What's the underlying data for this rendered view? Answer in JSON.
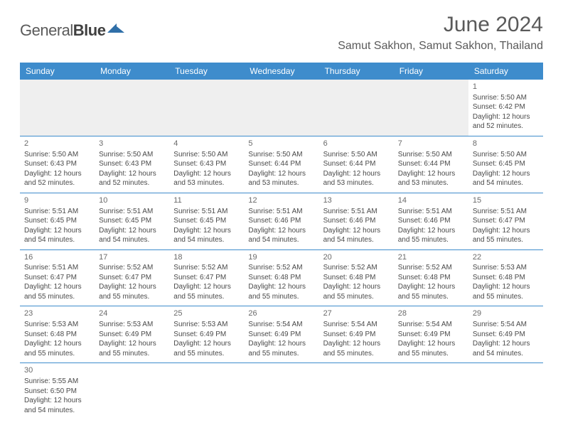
{
  "header": {
    "logo_general": "General",
    "logo_blue": "Blue",
    "month_title": "June 2024",
    "location": "Samut Sakhon, Samut Sakhon, Thailand"
  },
  "styling": {
    "header_bg": "#3e8ccc",
    "header_fg": "#ffffff",
    "border_color": "#3e8ccc",
    "blank_bg": "#efefef",
    "text_color": "#4a4a4a",
    "logo_shape_color": "#2f6fa8",
    "daynum_fontsize": 11,
    "cell_fontsize": 10,
    "th_fontsize": 12,
    "title_fontsize": 30,
    "location_fontsize": 16
  },
  "calendar": {
    "columns": [
      "Sunday",
      "Monday",
      "Tuesday",
      "Wednesday",
      "Thursday",
      "Friday",
      "Saturday"
    ],
    "weeks": [
      [
        null,
        null,
        null,
        null,
        null,
        null,
        {
          "n": "1",
          "sr": "5:50 AM",
          "ss": "6:42 PM",
          "dl1": "12 hours",
          "dl2": "and 52 minutes."
        }
      ],
      [
        {
          "n": "2",
          "sr": "5:50 AM",
          "ss": "6:43 PM",
          "dl1": "12 hours",
          "dl2": "and 52 minutes."
        },
        {
          "n": "3",
          "sr": "5:50 AM",
          "ss": "6:43 PM",
          "dl1": "12 hours",
          "dl2": "and 52 minutes."
        },
        {
          "n": "4",
          "sr": "5:50 AM",
          "ss": "6:43 PM",
          "dl1": "12 hours",
          "dl2": "and 53 minutes."
        },
        {
          "n": "5",
          "sr": "5:50 AM",
          "ss": "6:44 PM",
          "dl1": "12 hours",
          "dl2": "and 53 minutes."
        },
        {
          "n": "6",
          "sr": "5:50 AM",
          "ss": "6:44 PM",
          "dl1": "12 hours",
          "dl2": "and 53 minutes."
        },
        {
          "n": "7",
          "sr": "5:50 AM",
          "ss": "6:44 PM",
          "dl1": "12 hours",
          "dl2": "and 53 minutes."
        },
        {
          "n": "8",
          "sr": "5:50 AM",
          "ss": "6:45 PM",
          "dl1": "12 hours",
          "dl2": "and 54 minutes."
        }
      ],
      [
        {
          "n": "9",
          "sr": "5:51 AM",
          "ss": "6:45 PM",
          "dl1": "12 hours",
          "dl2": "and 54 minutes."
        },
        {
          "n": "10",
          "sr": "5:51 AM",
          "ss": "6:45 PM",
          "dl1": "12 hours",
          "dl2": "and 54 minutes."
        },
        {
          "n": "11",
          "sr": "5:51 AM",
          "ss": "6:45 PM",
          "dl1": "12 hours",
          "dl2": "and 54 minutes."
        },
        {
          "n": "12",
          "sr": "5:51 AM",
          "ss": "6:46 PM",
          "dl1": "12 hours",
          "dl2": "and 54 minutes."
        },
        {
          "n": "13",
          "sr": "5:51 AM",
          "ss": "6:46 PM",
          "dl1": "12 hours",
          "dl2": "and 54 minutes."
        },
        {
          "n": "14",
          "sr": "5:51 AM",
          "ss": "6:46 PM",
          "dl1": "12 hours",
          "dl2": "and 55 minutes."
        },
        {
          "n": "15",
          "sr": "5:51 AM",
          "ss": "6:47 PM",
          "dl1": "12 hours",
          "dl2": "and 55 minutes."
        }
      ],
      [
        {
          "n": "16",
          "sr": "5:51 AM",
          "ss": "6:47 PM",
          "dl1": "12 hours",
          "dl2": "and 55 minutes."
        },
        {
          "n": "17",
          "sr": "5:52 AM",
          "ss": "6:47 PM",
          "dl1": "12 hours",
          "dl2": "and 55 minutes."
        },
        {
          "n": "18",
          "sr": "5:52 AM",
          "ss": "6:47 PM",
          "dl1": "12 hours",
          "dl2": "and 55 minutes."
        },
        {
          "n": "19",
          "sr": "5:52 AM",
          "ss": "6:48 PM",
          "dl1": "12 hours",
          "dl2": "and 55 minutes."
        },
        {
          "n": "20",
          "sr": "5:52 AM",
          "ss": "6:48 PM",
          "dl1": "12 hours",
          "dl2": "and 55 minutes."
        },
        {
          "n": "21",
          "sr": "5:52 AM",
          "ss": "6:48 PM",
          "dl1": "12 hours",
          "dl2": "and 55 minutes."
        },
        {
          "n": "22",
          "sr": "5:53 AM",
          "ss": "6:48 PM",
          "dl1": "12 hours",
          "dl2": "and 55 minutes."
        }
      ],
      [
        {
          "n": "23",
          "sr": "5:53 AM",
          "ss": "6:48 PM",
          "dl1": "12 hours",
          "dl2": "and 55 minutes."
        },
        {
          "n": "24",
          "sr": "5:53 AM",
          "ss": "6:49 PM",
          "dl1": "12 hours",
          "dl2": "and 55 minutes."
        },
        {
          "n": "25",
          "sr": "5:53 AM",
          "ss": "6:49 PM",
          "dl1": "12 hours",
          "dl2": "and 55 minutes."
        },
        {
          "n": "26",
          "sr": "5:54 AM",
          "ss": "6:49 PM",
          "dl1": "12 hours",
          "dl2": "and 55 minutes."
        },
        {
          "n": "27",
          "sr": "5:54 AM",
          "ss": "6:49 PM",
          "dl1": "12 hours",
          "dl2": "and 55 minutes."
        },
        {
          "n": "28",
          "sr": "5:54 AM",
          "ss": "6:49 PM",
          "dl1": "12 hours",
          "dl2": "and 55 minutes."
        },
        {
          "n": "29",
          "sr": "5:54 AM",
          "ss": "6:49 PM",
          "dl1": "12 hours",
          "dl2": "and 54 minutes."
        }
      ],
      [
        {
          "n": "30",
          "sr": "5:55 AM",
          "ss": "6:50 PM",
          "dl1": "12 hours",
          "dl2": "and 54 minutes."
        },
        null,
        null,
        null,
        null,
        null,
        null
      ]
    ],
    "labels": {
      "sunrise_prefix": "Sunrise: ",
      "sunset_prefix": "Sunset: ",
      "daylight_prefix": "Daylight: "
    }
  }
}
